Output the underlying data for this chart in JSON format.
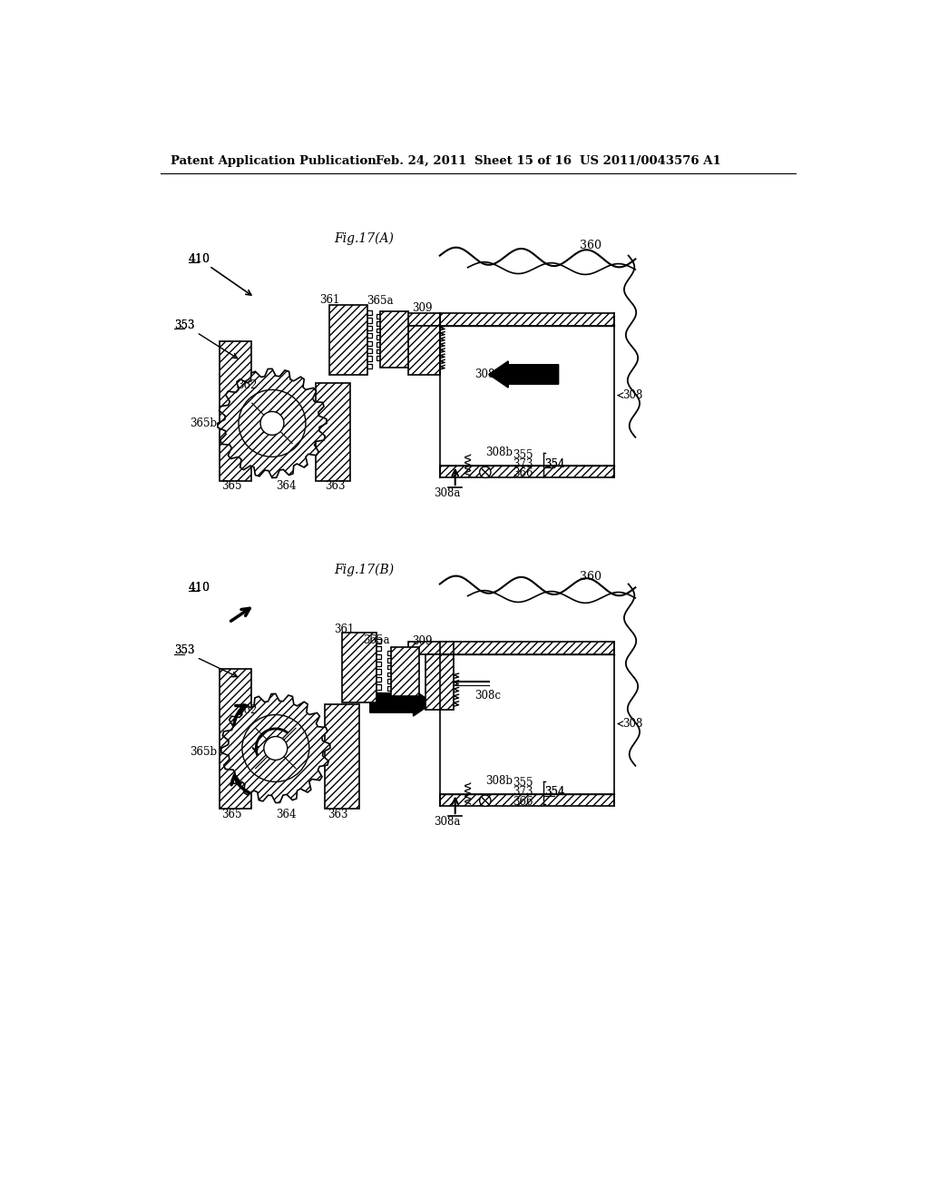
{
  "background_color": "#ffffff",
  "header_text": "Patent Application Publication",
  "header_date": "Feb. 24, 2011",
  "header_sheet": "Sheet 15 of 16",
  "header_patent": "US 2011/0043576 A1",
  "fig_a_title": "Fig.17(A)",
  "fig_b_title": "Fig.17(B)"
}
